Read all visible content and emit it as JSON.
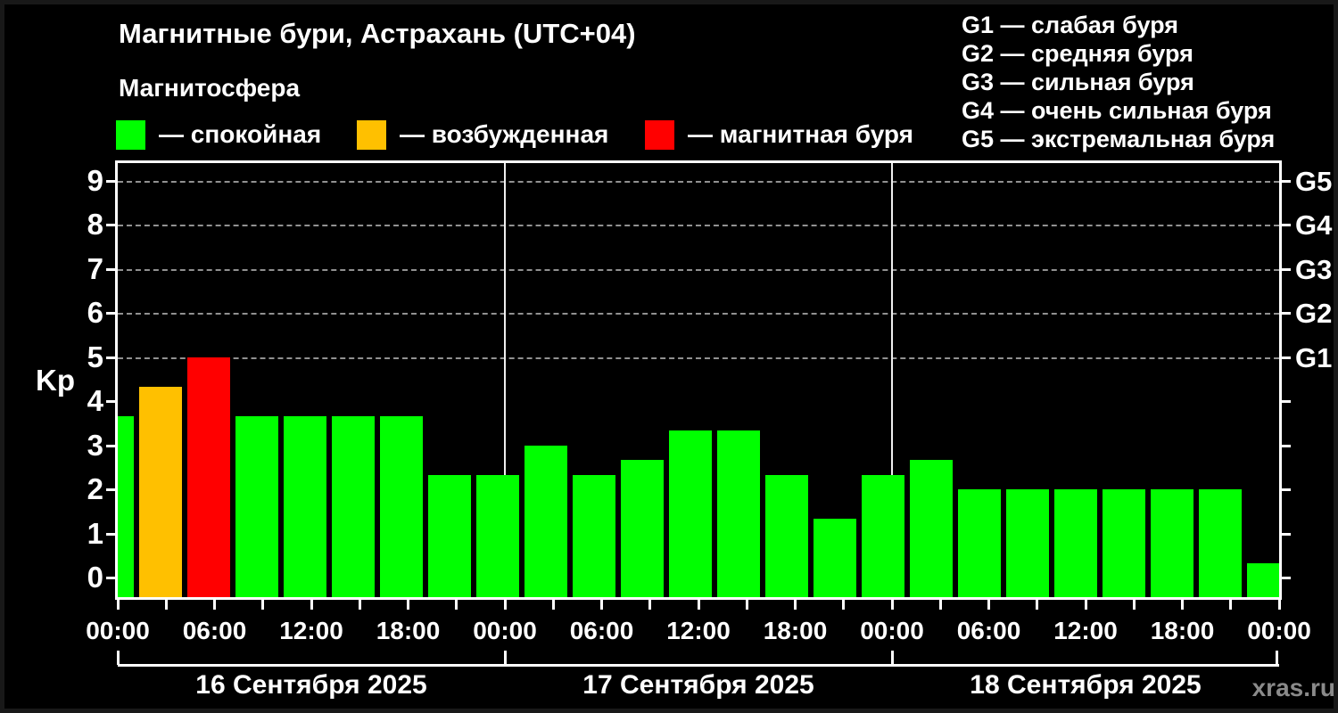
{
  "header": {
    "title": "Магнитные бури, Астрахань (UTC+04)",
    "subtitle": "Магнитосфера",
    "legend": [
      {
        "status": "quiet",
        "color": "#00ff00",
        "label": "— спокойная"
      },
      {
        "status": "excited",
        "color": "#ffc000",
        "label": "— возбужденная"
      },
      {
        "status": "storm",
        "color": "#ff0000",
        "label": "— магнитная буря"
      }
    ]
  },
  "g_legend": [
    "G1 — слабая буря",
    "G2 — средняя буря",
    "G3 — сильная буря",
    "G4 — очень сильная буря",
    "G5 — экстремальная буря"
  ],
  "watermark": "xras.ru",
  "chart_data": {
    "type": "bar",
    "title": "Магнитные бури, Астрахань (UTC+04)",
    "ylabel": "Kp",
    "ylim": [
      0,
      9
    ],
    "y_ticks": [
      0,
      1,
      2,
      3,
      4,
      5,
      6,
      7,
      8,
      9
    ],
    "gridlines_at_kp": [
      5,
      6,
      7,
      8,
      9
    ],
    "grid": "dashed horizontal at storm levels only",
    "legend_position": "top",
    "right_axis_labels": [
      {
        "label": "G1",
        "kp": 5
      },
      {
        "label": "G2",
        "kp": 6
      },
      {
        "label": "G3",
        "kp": 7
      },
      {
        "label": "G4",
        "kp": 8
      },
      {
        "label": "G5",
        "kp": 9
      }
    ],
    "x_interval_hours": 3,
    "x_tick_labels_6h": [
      "00:00",
      "06:00",
      "12:00",
      "18:00",
      "00:00",
      "06:00",
      "12:00",
      "18:00",
      "00:00",
      "06:00",
      "12:00",
      "18:00",
      "00:00"
    ],
    "days": [
      "16 Сентября 2025",
      "17 Сентября 2025",
      "18 Сентября 2025"
    ],
    "status_colors": {
      "quiet": "#00ff00",
      "excited": "#ffc000",
      "storm": "#ff0000"
    },
    "bars": [
      {
        "day": 0,
        "hour": "00:00",
        "kp": 3.67,
        "status": "quiet"
      },
      {
        "day": 0,
        "hour": "03:00",
        "kp": 4.33,
        "status": "excited"
      },
      {
        "day": 0,
        "hour": "06:00",
        "kp": 5.0,
        "status": "storm"
      },
      {
        "day": 0,
        "hour": "09:00",
        "kp": 3.67,
        "status": "quiet"
      },
      {
        "day": 0,
        "hour": "12:00",
        "kp": 3.67,
        "status": "quiet"
      },
      {
        "day": 0,
        "hour": "15:00",
        "kp": 3.67,
        "status": "quiet"
      },
      {
        "day": 0,
        "hour": "18:00",
        "kp": 3.67,
        "status": "quiet"
      },
      {
        "day": 0,
        "hour": "21:00",
        "kp": 2.33,
        "status": "quiet"
      },
      {
        "day": 1,
        "hour": "00:00",
        "kp": 2.33,
        "status": "quiet"
      },
      {
        "day": 1,
        "hour": "03:00",
        "kp": 3.0,
        "status": "quiet"
      },
      {
        "day": 1,
        "hour": "06:00",
        "kp": 2.33,
        "status": "quiet"
      },
      {
        "day": 1,
        "hour": "09:00",
        "kp": 2.67,
        "status": "quiet"
      },
      {
        "day": 1,
        "hour": "12:00",
        "kp": 3.33,
        "status": "quiet"
      },
      {
        "day": 1,
        "hour": "15:00",
        "kp": 3.33,
        "status": "quiet"
      },
      {
        "day": 1,
        "hour": "18:00",
        "kp": 2.33,
        "status": "quiet"
      },
      {
        "day": 1,
        "hour": "21:00",
        "kp": 1.33,
        "status": "quiet"
      },
      {
        "day": 2,
        "hour": "00:00",
        "kp": 2.33,
        "status": "quiet"
      },
      {
        "day": 2,
        "hour": "03:00",
        "kp": 2.67,
        "status": "quiet"
      },
      {
        "day": 2,
        "hour": "06:00",
        "kp": 2.0,
        "status": "quiet"
      },
      {
        "day": 2,
        "hour": "09:00",
        "kp": 2.0,
        "status": "quiet"
      },
      {
        "day": 2,
        "hour": "12:00",
        "kp": 2.0,
        "status": "quiet"
      },
      {
        "day": 2,
        "hour": "15:00",
        "kp": 2.0,
        "status": "quiet"
      },
      {
        "day": 2,
        "hour": "18:00",
        "kp": 2.0,
        "status": "quiet"
      },
      {
        "day": 2,
        "hour": "21:00",
        "kp": 2.0,
        "status": "quiet"
      },
      {
        "day": 3,
        "hour": "00:00",
        "kp": 0.33,
        "status": "quiet"
      }
    ]
  }
}
